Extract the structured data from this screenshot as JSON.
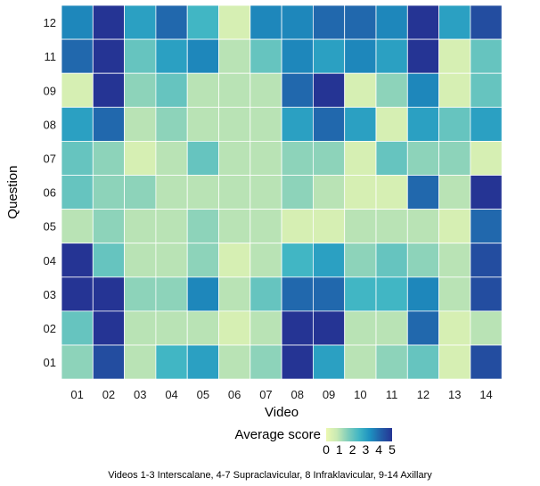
{
  "chart_data": {
    "type": "heatmap",
    "title": "",
    "xlabel": "Video",
    "ylabel": "Question",
    "x_categories": [
      "01",
      "02",
      "03",
      "04",
      "05",
      "06",
      "07",
      "08",
      "09",
      "10",
      "11",
      "12",
      "13",
      "14"
    ],
    "y_categories": [
      "12",
      "11",
      "09",
      "08",
      "07",
      "06",
      "05",
      "04",
      "03",
      "02",
      "01"
    ],
    "values": [
      [
        3.5,
        5,
        3,
        4,
        2.5,
        0.5,
        3.5,
        3.5,
        4,
        4,
        3.5,
        5,
        3,
        4.5
      ],
      [
        4,
        5,
        2,
        3,
        3.5,
        1,
        2,
        3.5,
        3,
        3.5,
        3,
        5,
        0.5,
        2
      ],
      [
        0.5,
        5,
        1.5,
        2,
        1,
        1,
        1,
        4,
        5,
        0.5,
        1.5,
        3.5,
        0.5,
        2
      ],
      [
        3,
        4,
        1,
        1.5,
        1,
        1,
        1,
        3,
        4,
        3,
        0.5,
        3,
        2,
        3
      ],
      [
        2,
        1.5,
        0.5,
        1,
        2,
        1,
        1,
        1.5,
        1.5,
        0.5,
        2,
        1.5,
        1.5,
        0.5
      ],
      [
        2,
        1.5,
        1.5,
        1,
        1,
        1,
        1,
        1.5,
        1,
        0.5,
        0.5,
        4,
        1,
        5
      ],
      [
        1,
        1.5,
        1,
        1,
        1.5,
        1,
        1,
        0.5,
        0.5,
        1,
        1,
        1,
        0.5,
        4
      ],
      [
        5,
        2,
        1,
        1,
        1.5,
        0.5,
        1,
        2.5,
        3,
        1.5,
        2,
        1.5,
        1,
        4.5
      ],
      [
        5,
        5,
        1.5,
        1.5,
        3.5,
        1,
        2,
        4,
        4,
        2.5,
        2.5,
        3.5,
        1,
        4.5
      ],
      [
        2,
        5,
        1,
        1,
        1,
        0.5,
        1,
        5,
        5,
        1,
        1,
        4,
        0.5,
        1
      ],
      [
        1.5,
        4.5,
        1,
        2.5,
        3,
        1,
        1.5,
        5,
        3,
        1,
        1.5,
        2,
        0.5,
        4.5
      ]
    ],
    "colorscale": [
      "#edf8b1",
      "#c7e9b4",
      "#7fcdbb",
      "#41b6c4",
      "#1d91c0",
      "#225ea8",
      "#253494"
    ],
    "legend": {
      "title": "Average score",
      "ticks": [
        "0",
        "1",
        "2",
        "3",
        "4",
        "5"
      ],
      "range": [
        0,
        5
      ],
      "placement": "bottom"
    },
    "caption": "Videos 1-3 Interscalane, 4-7 Supraclavicular, 8 Infraklavicular, 9-14 Axillary"
  }
}
